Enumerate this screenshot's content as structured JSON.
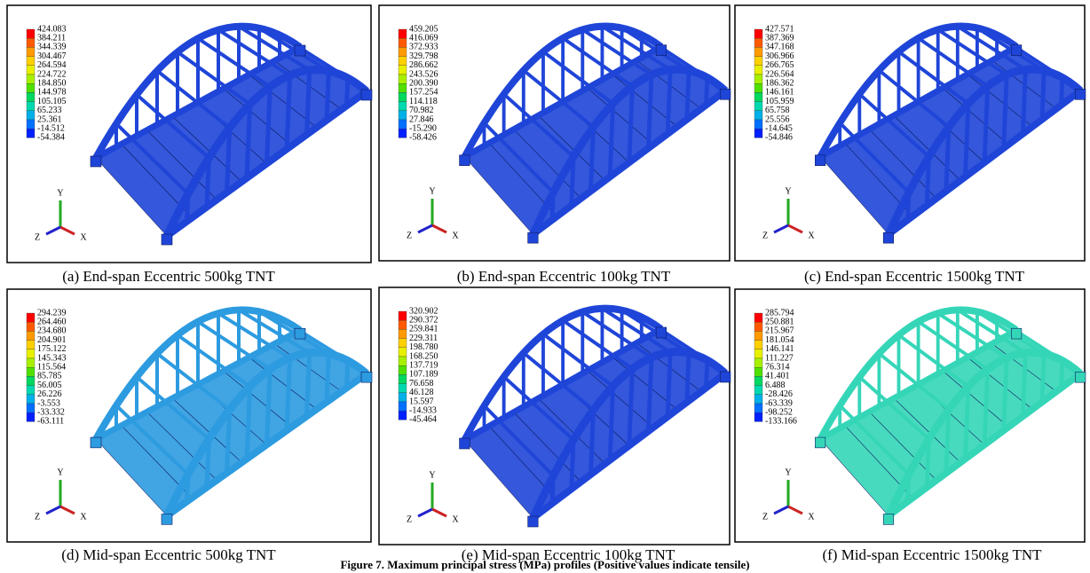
{
  "panels": [
    {
      "caption": "(a) End-span Eccentric 500kg TNT",
      "color": "#1f45d8",
      "axes": {
        "y": "Y",
        "z": "Z",
        "x": "X"
      },
      "legend": [
        "424.083",
        "384.211",
        "344.339",
        "304.467",
        "264.594",
        "224.722",
        "184.850",
        "144.978",
        "105.105",
        "65.233",
        "25.361",
        "-14.512",
        "-54.384"
      ]
    },
    {
      "caption": "(b) End-span Eccentric 100kg TNT",
      "color": "#1f45d8",
      "axes": {
        "y": "Y",
        "z": "Z",
        "x": "X"
      },
      "legend": [
        "459.205",
        "416.069",
        "372.933",
        "329.798",
        "286.662",
        "243.526",
        "200.390",
        "157.254",
        "114.118",
        "70.982",
        "27.846",
        "-15.290",
        "-58.426"
      ]
    },
    {
      "caption": "(c) End-span Eccentric 1500kg TNT",
      "color": "#1f45d8",
      "axes": {
        "y": "Y",
        "z": "Z",
        "x": "X"
      },
      "legend": [
        "427.571",
        "387.369",
        "347.168",
        "306.966",
        "266.765",
        "226.564",
        "186.362",
        "146.161",
        "105.959",
        "65.758",
        "25.556",
        "-14.645",
        "-54.846"
      ]
    },
    {
      "caption": "(d) Mid-span Eccentric 500kg TNT",
      "color": "#2d9be0",
      "axes": {
        "y": "Y",
        "z": "Z",
        "x": "X"
      },
      "legend": [
        "294.239",
        "264.460",
        "234.680",
        "204.901",
        "175.122",
        "145.343",
        "115.564",
        "85.785",
        "56.005",
        "26.226",
        "-3.553",
        "-33.332",
        "-63.111"
      ]
    },
    {
      "caption": "(e) Mid-span Eccentric 100kg TNT",
      "color": "#1f45d8",
      "axes": {
        "y": "Y",
        "z": "Z",
        "x": "X"
      },
      "legend": [
        "320.902",
        "290.372",
        "259.841",
        "229.311",
        "198.780",
        "168.250",
        "137.719",
        "107.189",
        "76.658",
        "46.128",
        "15.597",
        "-14.933",
        "-45.464"
      ]
    },
    {
      "caption": "(f) Mid-span Eccentric 1500kg TNT",
      "color": "#35d6b8",
      "axes": {
        "y": "Y",
        "z": "Z",
        "x": "X"
      },
      "legend": [
        "285.794",
        "250.881",
        "215.967",
        "181.054",
        "146.141",
        "111.227",
        "76.314",
        "41.401",
        "6.488",
        "-28.426",
        "-63.339",
        "-98.252",
        "-133.166"
      ]
    }
  ],
  "figure_caption": "Figure 7. Maximum principal stress (MPa) profiles (Positive values indicate tensile)"
}
